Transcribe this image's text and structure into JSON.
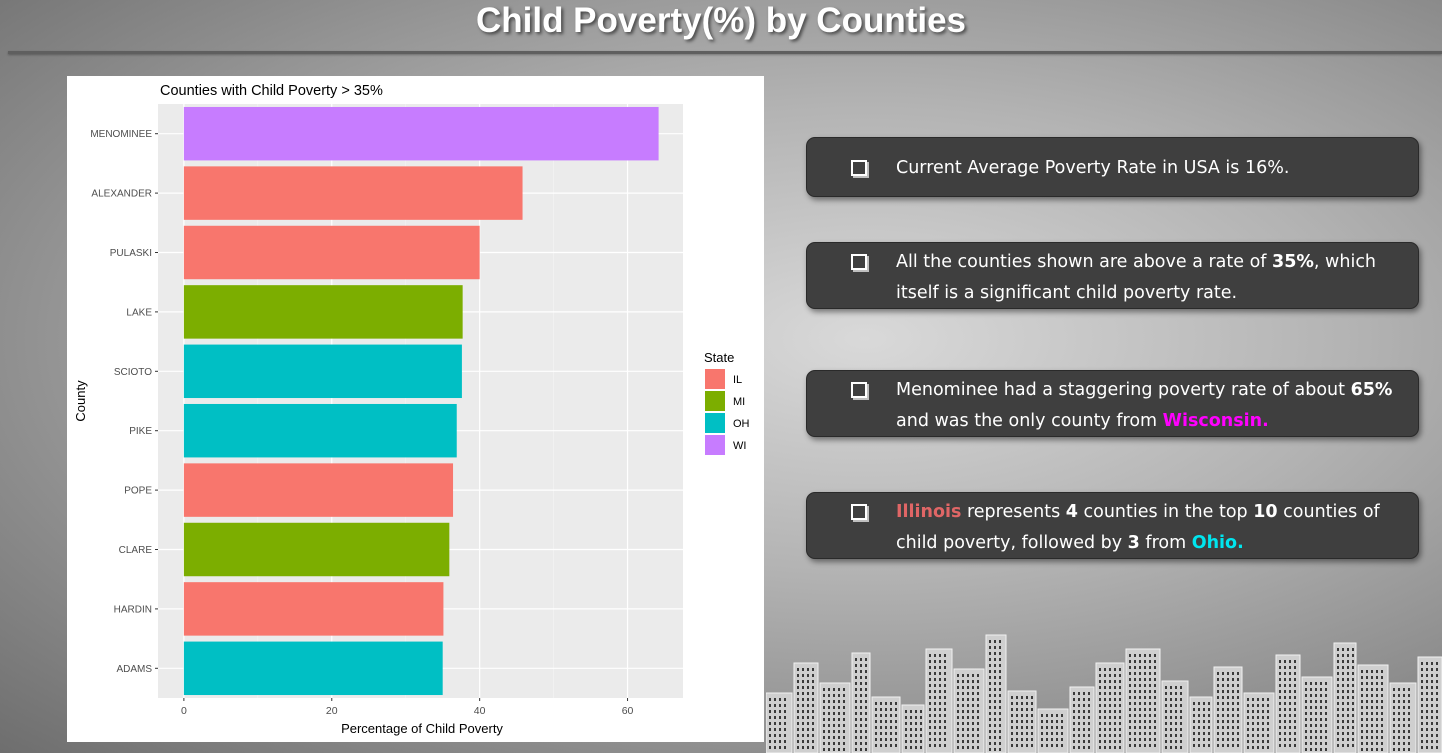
{
  "slide": {
    "title": "Child Poverty(%) by Counties"
  },
  "chart_data": {
    "type": "bar",
    "orientation": "horizontal",
    "title": "Counties with Child Poverty > 35%",
    "xlabel": "Percentage of Child Poverty",
    "ylabel": "County",
    "xlim": [
      -3.5,
      67.5
    ],
    "xticks": [
      0,
      20,
      40,
      60
    ],
    "grid": true,
    "legend": {
      "title": "State",
      "position": "right",
      "entries": [
        {
          "label": "IL",
          "color": "#F8766D"
        },
        {
          "label": "MI",
          "color": "#7CAE00"
        },
        {
          "label": "OH",
          "color": "#00BFC4"
        },
        {
          "label": "WI",
          "color": "#C77CFF"
        }
      ]
    },
    "categories": [
      "MENOMINEE",
      "ALEXANDER",
      "PULASKI",
      "LAKE",
      "SCIOTO",
      "PIKE",
      "POPE",
      "CLARE",
      "HARDIN",
      "ADAMS"
    ],
    "values": [
      64.2,
      45.8,
      40.0,
      37.7,
      37.6,
      36.9,
      36.4,
      35.9,
      35.1,
      35.0
    ],
    "states": [
      "WI",
      "IL",
      "IL",
      "MI",
      "OH",
      "OH",
      "IL",
      "MI",
      "IL",
      "OH"
    ]
  },
  "callouts": {
    "c1": {
      "text": "Current Average Poverty Rate in USA is 16%."
    },
    "c2": {
      "pre": "All the counties shown are above a rate of ",
      "bold": "35%",
      "post": ", which itself is a significant child poverty rate."
    },
    "c3": {
      "pre": "Menominee had a staggering poverty rate of about ",
      "bold": "65%",
      "mid": " and was the only county from ",
      "highlight": "Wisconsin."
    },
    "c4": {
      "il": "Illinois",
      "t1": " represents ",
      "b1": "4",
      "t2": " counties in the top ",
      "b2": "10",
      "t3": " counties of child poverty, followed by ",
      "b3": "3",
      "t4": " from ",
      "oh": "Ohio."
    }
  }
}
